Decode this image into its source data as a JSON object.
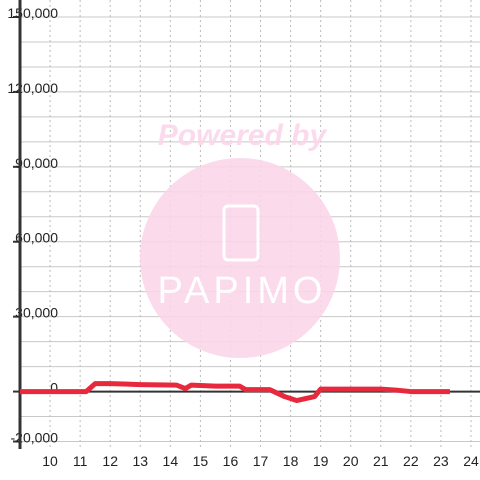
{
  "chart_data": {
    "type": "line",
    "watermark": [
      "Powered by",
      "PAPIMO"
    ],
    "xlim": [
      9,
      24.3
    ],
    "xticks": [
      10,
      11,
      12,
      13,
      14,
      15,
      16,
      17,
      18,
      19,
      20,
      21,
      22,
      23,
      24
    ],
    "ylim": [
      -23000,
      150000
    ],
    "yticks": [
      {
        "value": -20000,
        "label": "-20,000"
      },
      0,
      {
        "value": 30000,
        "label": "30,000"
      },
      {
        "value": 60000,
        "label": "60,000"
      },
      {
        "value": 90000,
        "label": "90,000"
      },
      {
        "value": 120000,
        "label": "120,000"
      },
      {
        "value": 150000,
        "label": "150,000"
      }
    ],
    "ygrid": [
      -20000,
      -10000,
      0,
      10000,
      20000,
      30000,
      40000,
      50000,
      60000,
      70000,
      80000,
      90000,
      100000,
      110000,
      120000,
      130000,
      140000,
      150000
    ],
    "grid": true,
    "series": [
      {
        "color": "#e8283c",
        "x": [
          9,
          11.2,
          11.5,
          12,
          13,
          14.2,
          14.5,
          14.7,
          15.5,
          16.3,
          16.5,
          17.3,
          17.8,
          18.2,
          18.5,
          18.8,
          19,
          20,
          21,
          21.5,
          22,
          23.3
        ],
        "values": [
          0,
          0,
          3200,
          3200,
          2800,
          2600,
          1200,
          2600,
          2200,
          2200,
          800,
          800,
          -2000,
          -3600,
          -2800,
          -2000,
          1000,
          1000,
          1000,
          600,
          0,
          0
        ]
      }
    ]
  }
}
